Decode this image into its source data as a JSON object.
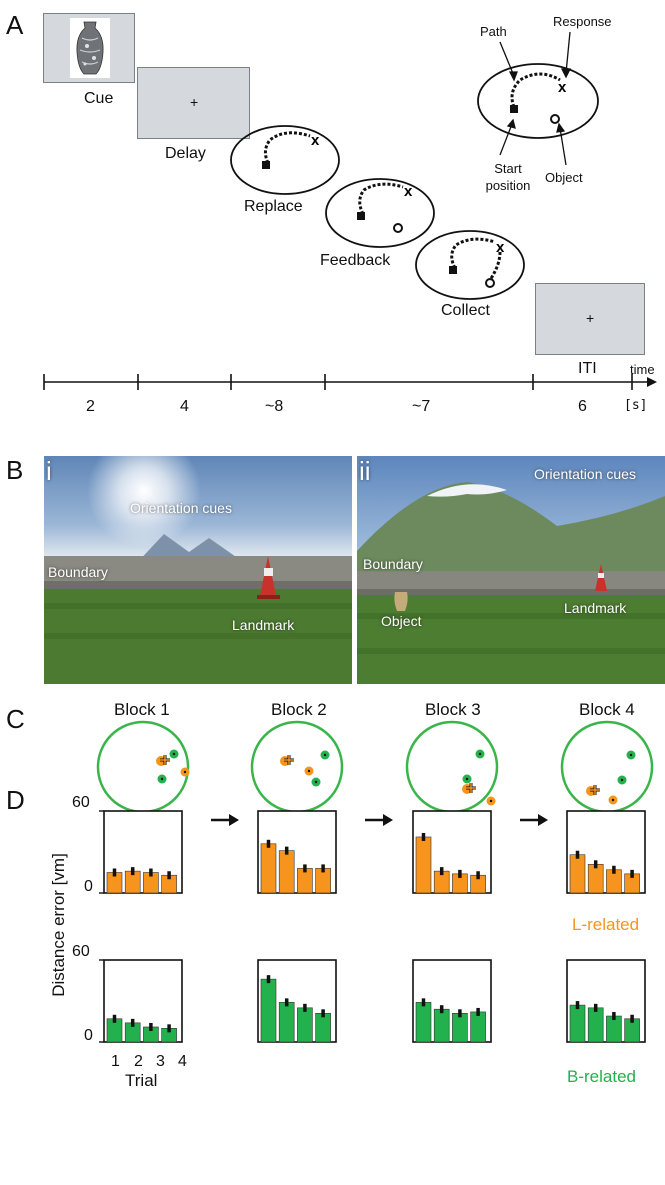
{
  "panels": {
    "a": "A",
    "b": "B",
    "c": "C",
    "d": "D"
  },
  "panel_a": {
    "stages": [
      "Cue",
      "Delay",
      "Replace",
      "Feedback",
      "Collect",
      "ITI"
    ],
    "delay_cross": "+",
    "iti_cross": "+",
    "inset_labels": {
      "path": "Path",
      "response": "Response",
      "start": "Start position",
      "object": "Object"
    },
    "timeline": {
      "durations": [
        "2",
        "4",
        "~8",
        "~7",
        "6"
      ],
      "unit": "[s]",
      "axis": "time"
    }
  },
  "panel_b": {
    "i": {
      "label": "i",
      "orientation": "Orientation cues",
      "boundary": "Boundary",
      "landmark": "Landmark"
    },
    "ii": {
      "label": "ii",
      "orientation": "Orientation cues",
      "boundary": "Boundary",
      "landmark": "Landmark",
      "object": "Object"
    }
  },
  "panel_c": {
    "blocks": [
      "Block 1",
      "Block 2",
      "Block 3",
      "Block 4"
    ]
  },
  "panel_d": {
    "ylabel": "Distance error [vm]",
    "ytick_top": "60",
    "ytick_bottom": "0",
    "xlabel": "Trial",
    "xticks": [
      "1",
      "2",
      "3",
      "4"
    ],
    "l_related": "L-related",
    "b_related": "B-related"
  },
  "colors": {
    "orange": "#f7941d",
    "green": "#22b14c",
    "circle": "#39b54a"
  },
  "chart_data": [
    {
      "type": "bar",
      "title": "",
      "series": [
        {
          "name": "L-related",
          "values": [
            15,
            16,
            15,
            13
          ]
        }
      ],
      "categories": [
        "1",
        "2",
        "3",
        "4"
      ],
      "ylim": [
        0,
        60
      ],
      "block": "Block 1"
    },
    {
      "type": "bar",
      "title": "",
      "series": [
        {
          "name": "L-related",
          "values": [
            36,
            31,
            18,
            18
          ]
        }
      ],
      "categories": [
        "1",
        "2",
        "3",
        "4"
      ],
      "ylim": [
        0,
        60
      ],
      "block": "Block 2"
    },
    {
      "type": "bar",
      "title": "",
      "series": [
        {
          "name": "L-related",
          "values": [
            41,
            16,
            14,
            13
          ]
        }
      ],
      "categories": [
        "1",
        "2",
        "3",
        "4"
      ],
      "ylim": [
        0,
        60
      ],
      "block": "Block 3"
    },
    {
      "type": "bar",
      "title": "",
      "series": [
        {
          "name": "L-related",
          "values": [
            28,
            21,
            17,
            14
          ]
        }
      ],
      "categories": [
        "1",
        "2",
        "3",
        "4"
      ],
      "ylim": [
        0,
        60
      ],
      "block": "Block 4"
    },
    {
      "type": "bar",
      "title": "",
      "series": [
        {
          "name": "B-related",
          "values": [
            17,
            14,
            11,
            10
          ]
        }
      ],
      "categories": [
        "1",
        "2",
        "3",
        "4"
      ],
      "ylim": [
        0,
        60
      ],
      "block": "Block 1"
    },
    {
      "type": "bar",
      "title": "",
      "series": [
        {
          "name": "B-related",
          "values": [
            46,
            29,
            25,
            21
          ]
        }
      ],
      "categories": [
        "1",
        "2",
        "3",
        "4"
      ],
      "ylim": [
        0,
        60
      ],
      "block": "Block 2"
    },
    {
      "type": "bar",
      "title": "",
      "series": [
        {
          "name": "B-related",
          "values": [
            29,
            24,
            21,
            22
          ]
        }
      ],
      "categories": [
        "1",
        "2",
        "3",
        "4"
      ],
      "ylim": [
        0,
        60
      ],
      "block": "Block 3"
    },
    {
      "type": "bar",
      "title": "",
      "series": [
        {
          "name": "B-related",
          "values": [
            27,
            25,
            19,
            17
          ]
        }
      ],
      "categories": [
        "1",
        "2",
        "3",
        "4"
      ],
      "ylim": [
        0,
        60
      ],
      "block": "Block 4"
    }
  ]
}
